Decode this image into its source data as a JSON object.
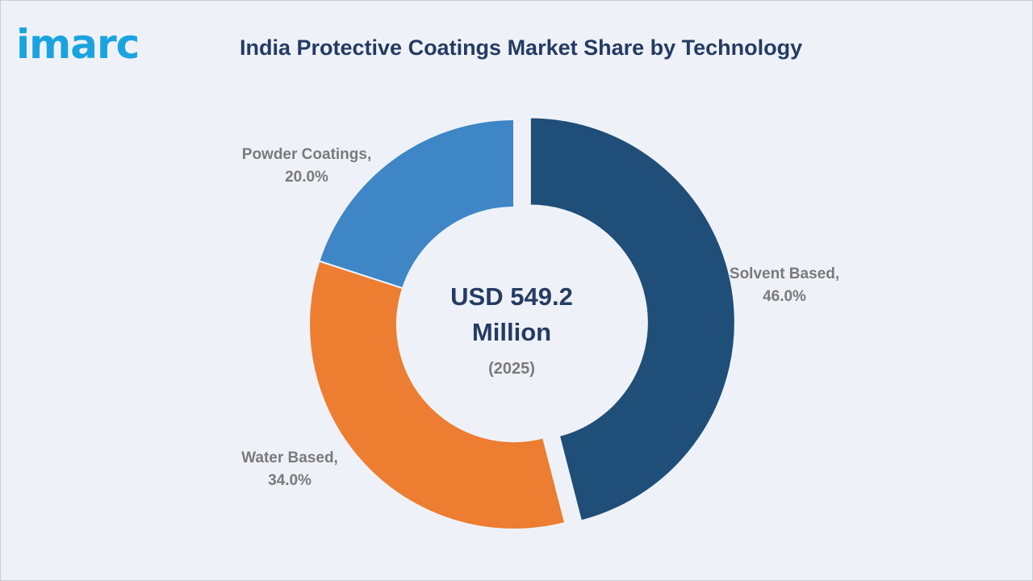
{
  "brand": {
    "logo_text": "imarc",
    "logo_color": "#1aa3e0"
  },
  "chart_data": {
    "type": "pie",
    "title": "India Protective Coatings Market Share by Technology",
    "unit": "%",
    "center_text": {
      "line1": "USD 549.2",
      "line2": "Million",
      "year": "(2025)"
    },
    "slices": [
      {
        "label": "Solvent Based,",
        "value": 46.0,
        "value_label": "46.0%",
        "color": "#1f4e79",
        "exploded": true
      },
      {
        "label": "Water Based,",
        "value": 34.0,
        "value_label": "34.0%",
        "color": "#ed7d31",
        "exploded": false
      },
      {
        "label": "Powder Coatings,",
        "value": 20.0,
        "value_label": "20.0%",
        "color": "#3e86c5",
        "exploded": false
      }
    ]
  }
}
